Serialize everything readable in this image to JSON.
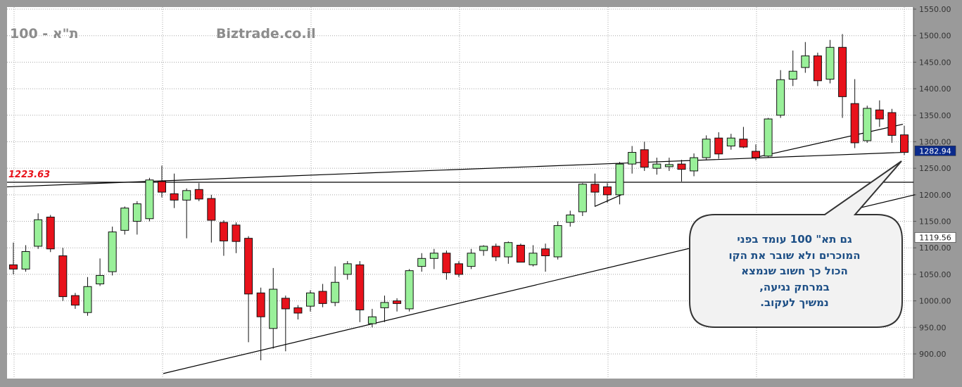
{
  "chart_data": {
    "type": "candlestick",
    "title": "ת\"א - 100",
    "watermark": "Biztrade.co.il",
    "ylim": [
      870,
      1560
    ],
    "yticks": [
      900,
      950,
      1000,
      1050,
      1100,
      1150,
      1200,
      1250,
      1300,
      1350,
      1400,
      1450,
      1500,
      1550
    ],
    "ytick_labels": [
      "900.00",
      "950.00",
      "1000.00",
      "1050.00",
      "1100.00",
      "1150.00",
      "1200.00",
      "1250.00",
      "1300.00",
      "1350.00",
      "1400.00",
      "1450.00",
      "1500.00",
      "1550.00"
    ],
    "grid": true,
    "colors": {
      "up": "#99f099",
      "down": "#e8121b",
      "plot_bg": "#ffffff",
      "frame": "#9a9a9a",
      "line": "#000000"
    },
    "candles": [
      [
        1068,
        1060,
        1110,
        1050
      ],
      [
        1060,
        1093,
        1105,
        1055
      ],
      [
        1103,
        1153,
        1165,
        1098
      ],
      [
        1158,
        1098,
        1162,
        1092
      ],
      [
        1085,
        1008,
        1100,
        1000
      ],
      [
        1010,
        992,
        1015,
        985
      ],
      [
        978,
        1027,
        1045,
        972
      ],
      [
        1032,
        1048,
        1080,
        1028
      ],
      [
        1055,
        1130,
        1140,
        1048
      ],
      [
        1133,
        1175,
        1178,
        1125
      ],
      [
        1150,
        1183,
        1188,
        1125
      ],
      [
        1155,
        1228,
        1232,
        1150
      ],
      [
        1225,
        1205,
        1255,
        1195
      ],
      [
        1202,
        1190,
        1240,
        1175
      ],
      [
        1190,
        1208,
        1212,
        1118
      ],
      [
        1210,
        1192,
        1222,
        1188
      ],
      [
        1193,
        1152,
        1200,
        1110
      ],
      [
        1148,
        1113,
        1152,
        1085
      ],
      [
        1143,
        1112,
        1148,
        1090
      ],
      [
        1118,
        1013,
        1122,
        922
      ],
      [
        1015,
        970,
        1025,
        888
      ],
      [
        948,
        1022,
        1062,
        910
      ],
      [
        1005,
        985,
        1010,
        905
      ],
      [
        987,
        977,
        992,
        965
      ],
      [
        990,
        1015,
        1020,
        980
      ],
      [
        1018,
        995,
        1032,
        988
      ],
      [
        997,
        1035,
        1065,
        990
      ],
      [
        1050,
        1070,
        1075,
        1040
      ],
      [
        1068,
        983,
        1075,
        960
      ],
      [
        957,
        970,
        985,
        950
      ],
      [
        987,
        997,
        1010,
        960
      ],
      [
        1000,
        995,
        1005,
        980
      ],
      [
        985,
        1057,
        1060,
        980
      ],
      [
        1065,
        1080,
        1090,
        1055
      ],
      [
        1080,
        1090,
        1098,
        1060
      ],
      [
        1090,
        1053,
        1095,
        1040
      ],
      [
        1070,
        1050,
        1075,
        1045
      ],
      [
        1065,
        1090,
        1098,
        1060
      ],
      [
        1095,
        1103,
        1105,
        1085
      ],
      [
        1103,
        1083,
        1108,
        1075
      ],
      [
        1083,
        1110,
        1112,
        1070
      ],
      [
        1105,
        1073,
        1108,
        1075
      ],
      [
        1068,
        1090,
        1105,
        1065
      ],
      [
        1098,
        1085,
        1108,
        1055
      ],
      [
        1083,
        1142,
        1150,
        1078
      ],
      [
        1148,
        1162,
        1170,
        1140
      ],
      [
        1168,
        1220,
        1222,
        1160
      ],
      [
        1220,
        1205,
        1240,
        1178
      ],
      [
        1215,
        1200,
        1222,
        1185
      ],
      [
        1200,
        1258,
        1262,
        1182
      ],
      [
        1258,
        1280,
        1292,
        1240
      ],
      [
        1285,
        1252,
        1300,
        1245
      ],
      [
        1250,
        1258,
        1270,
        1238
      ],
      [
        1253,
        1257,
        1270,
        1245
      ],
      [
        1258,
        1248,
        1266,
        1225
      ],
      [
        1245,
        1270,
        1278,
        1235
      ],
      [
        1270,
        1305,
        1312,
        1265
      ],
      [
        1307,
        1277,
        1318,
        1268
      ],
      [
        1292,
        1307,
        1315,
        1285
      ],
      [
        1305,
        1290,
        1328,
        1288
      ],
      [
        1282,
        1270,
        1295,
        1265
      ],
      [
        1273,
        1343,
        1345,
        1270
      ],
      [
        1350,
        1417,
        1435,
        1345
      ],
      [
        1418,
        1433,
        1472,
        1405
      ],
      [
        1440,
        1462,
        1488,
        1430
      ],
      [
        1462,
        1415,
        1468,
        1405
      ],
      [
        1418,
        1478,
        1492,
        1410
      ],
      [
        1478,
        1385,
        1503,
        1345
      ],
      [
        1372,
        1298,
        1418,
        1288
      ],
      [
        1302,
        1363,
        1368,
        1298
      ],
      [
        1360,
        1343,
        1378,
        1328
      ],
      [
        1355,
        1312,
        1362,
        1298
      ],
      [
        1313,
        1280,
        1330,
        1275
      ]
    ],
    "trendlines": [
      [
        [
          10,
          1215
        ],
        [
          1283,
          1280
        ]
      ],
      [
        [
          232,
          863
        ],
        [
          1300,
          1200
        ]
      ],
      [
        [
          845,
          1178
        ],
        [
          883,
          1200
        ]
      ],
      [
        [
          1072,
          1270
        ],
        [
          1283,
          1333
        ]
      ]
    ],
    "hline": {
      "value": 1223.63,
      "label": "1223.63",
      "color": "#e8121b"
    },
    "price_tags": [
      {
        "value": 1282.94,
        "label": "1282.94",
        "bg": "#0a2a8c",
        "fg": "#ffffff"
      },
      {
        "value": 1119.56,
        "label": "1119.56",
        "bg": "#ffffff",
        "fg": "#222222"
      }
    ],
    "annotation": {
      "lines": [
        "גם  תא\" 100  עומד   בפני",
        "המוכרים ולא  שובר  את  הקו",
        "הכול כך  חשוב  שנמצא",
        "במרחק  נגיעה,",
        "נמשיך לעקוב."
      ]
    }
  }
}
